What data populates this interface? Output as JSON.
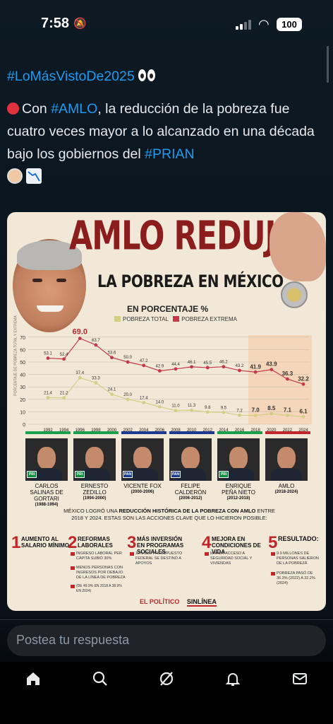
{
  "status": {
    "time": "7:58",
    "battery": "100"
  },
  "tweet": {
    "hashtag_line": "#LoMásVistoDe2025",
    "t1": "Con ",
    "t2": "#AMLO",
    "t3": ", la reducción de la pobreza fue cuatro veces mayor a lo alcanzado en una década bajo los gobiernos del ",
    "t4": "#PRIAN"
  },
  "infographic": {
    "title": "AMLO REDUJO",
    "subtitle": "LA POBREZA EN MÉXICO",
    "percent_label": "EN PORCENTAJE %",
    "legend_total": "POBREZA TOTAL",
    "legend_extreme": "POBREZA EXTREMA",
    "axis_note": "PORCENTAJE DE POBREZA TOTAL Y EXTREMA",
    "presidents": [
      {
        "name": "CARLOS SALINAS DE GORTARI",
        "years": "(1988-1994)"
      },
      {
        "name": "ERNESTO ZEDILLO",
        "years": "(1994-2000)"
      },
      {
        "name": "VICENTE FOX",
        "years": "(2000-2006)"
      },
      {
        "name": "FELIPE CALDERÓN",
        "years": "(2006-2012)"
      },
      {
        "name": "ENRIQUE PEÑA NIETO",
        "years": "(2012-2018)"
      },
      {
        "name": "AMLO",
        "years": "(2018-2024)"
      }
    ],
    "mid_text_a": "MÉXICO LOGRÓ UNA ",
    "mid_text_b": "REDUCCIÓN HISTÓRICA DE LA POBREZA CON AMLO",
    "mid_text_c": " ENTRE 2018 Y 2024. ESTAS SON LAS ACCIONES CLAVE QUE LO HICIERON POSIBLE:",
    "actions": [
      {
        "num": "1",
        "title": "AUMENTO AL SALARIO MÍNIMO",
        "bullets": []
      },
      {
        "num": "2",
        "title": "REFORMAS LABORALES",
        "bullets": [
          "INGRESO LABORAL PER CÁPITA SUBIÓ 30%",
          "MENOS PERSONAS CON INGRESOS POR DEBAJO DE LA LÍNEA DE POBREZA",
          "(DE 49.9% EN 2018 A 38.9% EN 2024)"
        ]
      },
      {
        "num": "3",
        "title": "MÁS INVERSIÓN EN PROGRAMAS SOCIALES",
        "bullets": [
          "12% DEL PRESUPUESTO FEDERAL SE DESTINÓ A APOYOS"
        ]
      },
      {
        "num": "4",
        "title": "MEJORA EN CONDICIONES DE VIDA",
        "bullets": [
          "MAYOR ACCESO A SEGURIDAD SOCIAL Y VIVIENDAS"
        ]
      },
      {
        "num": "5",
        "title": "RESULTADO:",
        "bullets": [
          "9.9 MILLONES DE PERSONAS SALIERON DE LA POBREZA",
          "POBREZA PASÓ DE 36.3% (2022) A 32.2% (2024)"
        ]
      }
    ],
    "logo_left": "EL POLÍTICO",
    "logo_right": "SINLÍNEA"
  },
  "chart_data": {
    "type": "line",
    "x": [
      "1992",
      "1994",
      "1996",
      "1998",
      "2000",
      "2002",
      "2004",
      "2006",
      "2008",
      "2010",
      "2012",
      "2014",
      "2016",
      "2018",
      "2020",
      "2022",
      "2024"
    ],
    "yticks": [
      0,
      10,
      20,
      30,
      40,
      50,
      60,
      70
    ],
    "ylim": [
      0,
      75
    ],
    "series": [
      {
        "name": "POBREZA TOTAL",
        "color": "#c5384a",
        "values": [
          53.1,
          52.4,
          69.0,
          63.7,
          53.6,
          50.0,
          47.2,
          42.9,
          44.4,
          46.1,
          45.5,
          46.2,
          43.2,
          41.9,
          43.9,
          36.3,
          32.2
        ]
      },
      {
        "name": "POBREZA EXTREMA",
        "color": "#d4cf86",
        "values": [
          21.4,
          21.2,
          37.4,
          33.3,
          24.1,
          20.0,
          17.4,
          14.0,
          11.0,
          11.3,
          9.8,
          9.5,
          7.2,
          7.0,
          8.5,
          7.1,
          6.1
        ]
      }
    ],
    "labels_total": [
      "53.1",
      "52.4",
      "69.0",
      "63.7",
      "53.6",
      "50.0",
      "47.2",
      "42.9",
      "44.4",
      "46.1",
      "45.5",
      "46.2",
      "43.2",
      "41.9",
      "43.9",
      "36.3",
      "32.2"
    ],
    "labels_extreme": [
      "21.4",
      "21.2",
      "37.4",
      "33.3",
      "24.1",
      "20.0",
      "17.4",
      "14.0",
      "11.0",
      "11.3",
      "9.8",
      "9.5",
      "7.2",
      "7.0",
      "8.5",
      "7.1",
      "6.1"
    ]
  },
  "reply": {
    "placeholder": "Postea tu respuesta"
  }
}
